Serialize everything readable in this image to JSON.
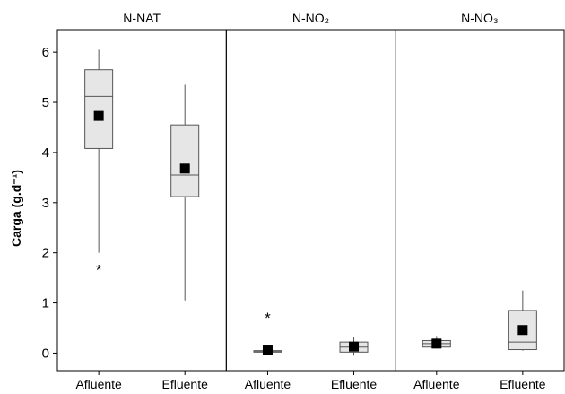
{
  "chart_data": {
    "type": "box",
    "ylabel": "Carga (g.d⁻¹)",
    "ylim": [
      -0.35,
      6.45
    ],
    "yticks": [
      "0",
      "1",
      "2",
      "3",
      "4",
      "5",
      "6"
    ],
    "colors": {
      "box_fill": "#e6e6e6",
      "box_stroke": "#555555",
      "mean_marker": "#000000"
    },
    "panels": [
      {
        "title": "N-NAT",
        "boxes": [
          {
            "category": "Afluente",
            "min": 2.0,
            "q1": 4.08,
            "median": 5.12,
            "q3": 5.65,
            "max": 6.05,
            "mean": 4.73,
            "outliers": [
              1.7
            ]
          },
          {
            "category": "Efluente",
            "min": 1.05,
            "q1": 3.12,
            "median": 3.55,
            "q3": 4.55,
            "max": 5.35,
            "mean": 3.68,
            "outliers": []
          }
        ]
      },
      {
        "title": "N-NO₂",
        "boxes": [
          {
            "category": "Afluente",
            "min": 0.0,
            "q1": 0.02,
            "median": 0.03,
            "q3": 0.05,
            "max": 0.15,
            "mean": 0.07,
            "outliers": [
              0.74
            ]
          },
          {
            "category": "Efluente",
            "min": -0.05,
            "q1": 0.02,
            "median": 0.12,
            "q3": 0.22,
            "max": 0.33,
            "mean": 0.13,
            "outliers": []
          }
        ]
      },
      {
        "title": "N-NO₃",
        "boxes": [
          {
            "category": "Afluente",
            "min": 0.09,
            "q1": 0.12,
            "median": 0.19,
            "q3": 0.25,
            "max": 0.34,
            "mean": 0.19,
            "outliers": []
          },
          {
            "category": "Efluente",
            "min": 0.05,
            "q1": 0.07,
            "median": 0.22,
            "q3": 0.85,
            "max": 1.25,
            "mean": 0.46,
            "outliers": []
          }
        ]
      }
    ]
  }
}
